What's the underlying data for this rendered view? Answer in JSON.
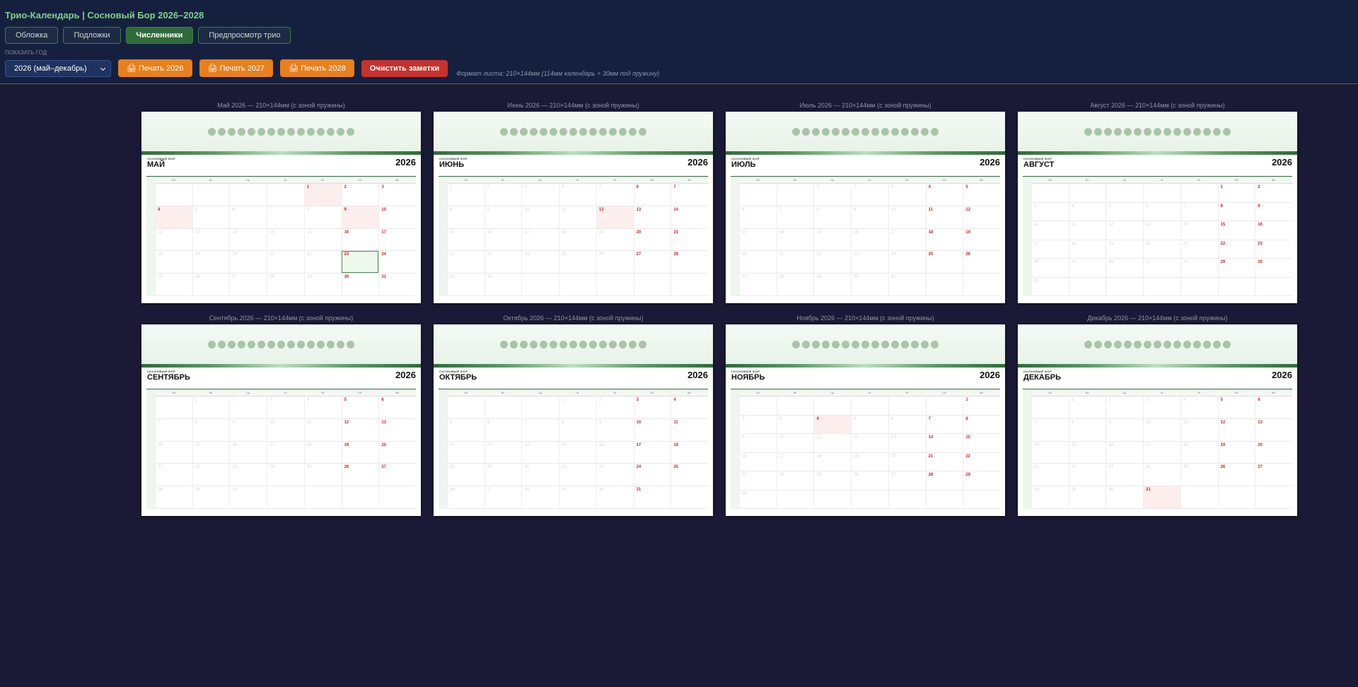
{
  "header": {
    "title": "Трио-Календарь | Сосновый Бор 2026–2028",
    "tabs": [
      "Обложка",
      "Подложки",
      "Численники",
      "Предпросмотр трио"
    ],
    "year_label": "ПОКАЗАТЬ ГОД",
    "year_select": "2026 (май–декабрь)",
    "actions": [
      "🖨 Печать 2026",
      "🖨 Печать 2027",
      "🖨 Печать 2028"
    ],
    "clear": "Очистить заметки",
    "format_note": "Формат листа: 210×144мм (114мм календарь + 30мм под пружину)"
  },
  "calendar": {
    "brand": "СОСНОВЫЙ БОР",
    "weekdays": [
      "Пн",
      "Вт",
      "Ср",
      "Чт",
      "Пт",
      "Сб",
      "Вс"
    ],
    "months": [
      {
        "caption": "Май 2026 — 210×144мм (с зоной пружины)",
        "name": "МАЙ",
        "year": "2026",
        "holidays": [
          1,
          4,
          9
        ],
        "marked": [
          23
        ],
        "weeks": [
          [
            null,
            null,
            null,
            null,
            1,
            2,
            3
          ],
          [
            4,
            5,
            6,
            7,
            8,
            9,
            10
          ],
          [
            11,
            12,
            13,
            14,
            15,
            16,
            17
          ],
          [
            18,
            19,
            20,
            21,
            22,
            23,
            24
          ],
          [
            25,
            26,
            27,
            28,
            29,
            30,
            31
          ]
        ]
      },
      {
        "caption": "Июнь 2026 — 210×144мм (с зоной пружины)",
        "name": "ИЮНЬ",
        "year": "2026",
        "holidays": [
          12
        ],
        "marked": [],
        "weeks": [
          [
            1,
            2,
            3,
            4,
            5,
            6,
            7
          ],
          [
            8,
            9,
            10,
            11,
            12,
            13,
            14
          ],
          [
            15,
            16,
            17,
            18,
            19,
            20,
            21
          ],
          [
            22,
            23,
            24,
            25,
            26,
            27,
            28
          ],
          [
            29,
            30,
            null,
            null,
            null,
            null,
            null
          ]
        ]
      },
      {
        "caption": "Июль 2026 — 210×144мм (с зоной пружины)",
        "name": "ИЮЛЬ",
        "year": "2026",
        "holidays": [],
        "marked": [],
        "weeks": [
          [
            null,
            null,
            1,
            2,
            3,
            4,
            5
          ],
          [
            6,
            7,
            8,
            9,
            10,
            11,
            12
          ],
          [
            13,
            14,
            15,
            16,
            17,
            18,
            19
          ],
          [
            20,
            21,
            22,
            23,
            24,
            25,
            26
          ],
          [
            27,
            28,
            29,
            30,
            31,
            null,
            null
          ]
        ]
      },
      {
        "caption": "Август 2026 — 210×144мм (с зоной пружины)",
        "name": "АВГУСТ",
        "year": "2026",
        "holidays": [],
        "marked": [],
        "weeks": [
          [
            null,
            null,
            null,
            null,
            null,
            1,
            2
          ],
          [
            3,
            4,
            5,
            6,
            7,
            8,
            9
          ],
          [
            10,
            11,
            12,
            13,
            14,
            15,
            16
          ],
          [
            17,
            18,
            19,
            20,
            21,
            22,
            23
          ],
          [
            24,
            25,
            26,
            27,
            28,
            29,
            30
          ],
          [
            31,
            null,
            null,
            null,
            null,
            null,
            null
          ]
        ]
      },
      {
        "caption": "Сентябрь 2026 — 210×144мм (с зоной пружины)",
        "name": "СЕНТЯБРЬ",
        "year": "2026",
        "holidays": [],
        "marked": [],
        "weeks": [
          [
            null,
            1,
            2,
            3,
            4,
            5,
            6
          ],
          [
            7,
            8,
            9,
            10,
            11,
            12,
            13
          ],
          [
            14,
            15,
            16,
            17,
            18,
            19,
            20
          ],
          [
            21,
            22,
            23,
            24,
            25,
            26,
            27
          ],
          [
            28,
            29,
            30,
            null,
            null,
            null,
            null
          ]
        ]
      },
      {
        "caption": "Октябрь 2026 — 210×144мм (с зоной пружины)",
        "name": "ОКТЯБРЬ",
        "year": "2026",
        "holidays": [],
        "marked": [],
        "weeks": [
          [
            null,
            null,
            null,
            1,
            2,
            3,
            4
          ],
          [
            5,
            6,
            7,
            8,
            9,
            10,
            11
          ],
          [
            12,
            13,
            14,
            15,
            16,
            17,
            18
          ],
          [
            19,
            20,
            21,
            22,
            23,
            24,
            25
          ],
          [
            26,
            27,
            28,
            29,
            30,
            31,
            null
          ]
        ]
      },
      {
        "caption": "Ноябрь 2026 — 210×144мм (с зоной пружины)",
        "name": "НОЯБРЬ",
        "year": "2026",
        "holidays": [
          4
        ],
        "marked": [],
        "weeks": [
          [
            null,
            null,
            null,
            null,
            null,
            null,
            1
          ],
          [
            2,
            3,
            4,
            5,
            6,
            7,
            8
          ],
          [
            9,
            10,
            11,
            12,
            13,
            14,
            15
          ],
          [
            16,
            17,
            18,
            19,
            20,
            21,
            22
          ],
          [
            23,
            24,
            25,
            26,
            27,
            28,
            29
          ],
          [
            30,
            null,
            null,
            null,
            null,
            null,
            null
          ]
        ]
      },
      {
        "caption": "Декабрь 2026 — 210×144мм (с зоной пружины)",
        "name": "ДЕКАБРЬ",
        "year": "2026",
        "holidays": [
          31
        ],
        "marked": [],
        "weeks": [
          [
            null,
            1,
            2,
            3,
            4,
            5,
            6
          ],
          [
            7,
            8,
            9,
            10,
            11,
            12,
            13
          ],
          [
            14,
            15,
            16,
            17,
            18,
            19,
            20
          ],
          [
            21,
            22,
            23,
            24,
            25,
            26,
            27
          ],
          [
            28,
            29,
            30,
            31,
            null,
            null,
            null
          ]
        ]
      }
    ]
  }
}
